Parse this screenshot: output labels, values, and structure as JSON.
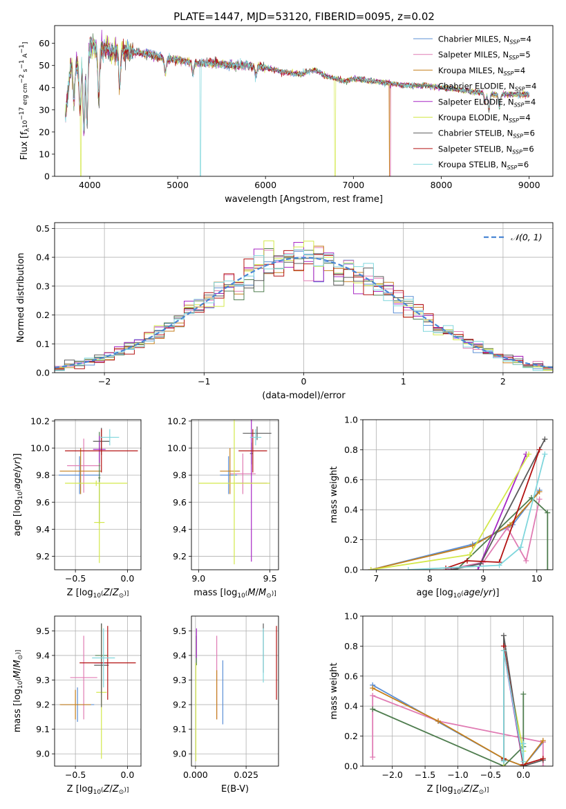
{
  "figure": {
    "title": "PLATE=1447, MJD=53120, FIBERID=0095, z=0.02"
  },
  "colors": {
    "Chabrier MILES": "#5b8fd6",
    "Salpeter MILES": "#e07bb3",
    "Kroupa MILES": "#c57f1c",
    "Chabrier ELODIE": "#4f7d4f",
    "Salpeter ELODIE": "#a626c4",
    "Kroupa ELODIE": "#d3e84a",
    "Chabrier STELIB": "#5a5a5a",
    "Salpeter STELIB": "#b31212",
    "Kroupa STELIB": "#7fd6dc"
  },
  "chart_data": [
    {
      "id": "spectrum",
      "type": "line",
      "xlabel": "wavelength [Angstrom, rest frame]",
      "ylabel": "Flux [f_λ 10^-17 erg cm^-2 s^-1 A^-1]",
      "xlim": [
        3600,
        9270
      ],
      "ylim": [
        0,
        68
      ],
      "xticks": [
        "4000",
        "5000",
        "6000",
        "7000",
        "8000",
        "9000"
      ],
      "yticks": [
        "0",
        "10",
        "20",
        "30",
        "40",
        "50",
        "60"
      ],
      "grid": false,
      "legend_position": "top-right",
      "legend": [
        {
          "model": "Chabrier MILES",
          "n": "4"
        },
        {
          "model": "Salpeter MILES",
          "n": "5"
        },
        {
          "model": "Kroupa MILES",
          "n": "4"
        },
        {
          "model": "Chabrier ELODIE",
          "n": "4"
        },
        {
          "model": "Salpeter ELODIE",
          "n": "4"
        },
        {
          "model": "Kroupa ELODIE",
          "n": "4"
        },
        {
          "model": "Chabrier STELIB",
          "n": "6"
        },
        {
          "model": "Salpeter STELIB",
          "n": "6"
        },
        {
          "model": "Kroupa STELIB",
          "n": "6"
        }
      ],
      "continuum": [
        [
          3720,
          26
        ],
        [
          3780,
          48
        ],
        [
          3850,
          50
        ],
        [
          3900,
          52
        ],
        [
          3960,
          55
        ],
        [
          4000,
          58
        ],
        [
          4100,
          58
        ],
        [
          4200,
          57
        ],
        [
          4300,
          56
        ],
        [
          4400,
          56.5
        ],
        [
          4500,
          56
        ],
        [
          4700,
          55
        ],
        [
          4860,
          53
        ],
        [
          5000,
          52.5
        ],
        [
          5200,
          51
        ],
        [
          5400,
          51
        ],
        [
          5600,
          50
        ],
        [
          5800,
          50
        ],
        [
          6000,
          49
        ],
        [
          6200,
          47
        ],
        [
          6400,
          46
        ],
        [
          6563,
          48
        ],
        [
          6700,
          45
        ],
        [
          6900,
          43
        ],
        [
          7000,
          44
        ],
        [
          7200,
          43
        ],
        [
          7400,
          42
        ],
        [
          7600,
          41
        ],
        [
          7800,
          41
        ],
        [
          8000,
          40
        ],
        [
          8200,
          39
        ],
        [
          8400,
          38
        ],
        [
          8600,
          37
        ],
        [
          8800,
          37
        ],
        [
          9000,
          37
        ]
      ],
      "absorption_lines": [
        [
          3820,
          34
        ],
        [
          3889,
          30
        ],
        [
          3933,
          22
        ],
        [
          3968,
          24
        ],
        [
          4102,
          34
        ],
        [
          4340,
          40
        ],
        [
          4861,
          47
        ],
        [
          5175,
          46
        ],
        [
          5890,
          45
        ],
        [
          8498,
          33
        ],
        [
          8542,
          30
        ],
        [
          8662,
          31
        ]
      ],
      "line_range": [
        3720,
        9000
      ]
    },
    {
      "id": "residuals",
      "type": "histogram",
      "xlabel": "(data-model)/error",
      "ylabel": "Normed distribution",
      "xlim": [
        -2.5,
        2.5
      ],
      "ylim": [
        0,
        0.52
      ],
      "xticks": [
        "−2",
        "−1",
        "0",
        "1",
        "2"
      ],
      "yticks": [
        "0.0",
        "0.1",
        "0.2",
        "0.3",
        "0.4",
        "0.5"
      ],
      "grid": true,
      "bin_width": 0.1,
      "legend_position": "top-right",
      "legend": {
        "label": "N(0,1)"
      },
      "reference_curve": {
        "mean": 0,
        "sigma": 1
      }
    },
    {
      "id": "age-vs-Z",
      "type": "errorbar",
      "xlabel": "Z [log10(Z/Z⊙)]",
      "ylabel": "age [log10(age/yr)]",
      "xlim": [
        -0.7,
        0.13
      ],
      "ylim": [
        9.1,
        10.21
      ],
      "xticks": [
        "−0.5",
        "0.0"
      ],
      "yticks": [
        "9.2",
        "9.4",
        "9.6",
        "9.8",
        "10.0",
        "10.2"
      ],
      "grid": true,
      "points": [
        {
          "model": "Chabrier MILES",
          "x": -0.46,
          "xerr": 0.2,
          "y": 9.8,
          "yerr": 0.14
        },
        {
          "model": "Salpeter MILES",
          "x": -0.42,
          "xerr": 0.16,
          "y": 9.87,
          "yerr": 0.2
        },
        {
          "model": "Kroupa MILES",
          "x": -0.45,
          "xerr": 0.2,
          "y": 9.83,
          "yerr": 0.17
        },
        {
          "model": "Chabrier ELODIE",
          "x": -0.27,
          "xerr": 0.01,
          "y": 9.78,
          "yerr": 0.34
        },
        {
          "model": "Salpeter ELODIE",
          "x": -0.27,
          "xerr": 0.06,
          "y": 9.99,
          "yerr": 0.1
        },
        {
          "model": "Kroupa ELODIE",
          "x": -0.27,
          "xerr": 0.05,
          "y": 9.45,
          "yerr": 0.3
        },
        {
          "model": "Chabrier STELIB",
          "x": -0.25,
          "xerr": 0.08,
          "y": 10.05,
          "yerr": 0.1
        },
        {
          "model": "Salpeter STELIB",
          "x": -0.25,
          "xerr": 0.35,
          "y": 9.98,
          "yerr": 0.16
        },
        {
          "model": "Kroupa STELIB",
          "x": -0.17,
          "xerr": 0.09,
          "y": 10.08,
          "yerr": 0.06
        },
        {
          "model": "Kroupa ELODIE",
          "x": -0.3,
          "xerr": 0.3,
          "y": 9.74,
          "yerr": 0.02
        }
      ]
    },
    {
      "id": "age-vs-mass",
      "type": "errorbar",
      "xlabel": "mass [log10(M/M⊙)]",
      "ylabel": "",
      "xlim": [
        8.95,
        9.56
      ],
      "ylim": [
        9.1,
        10.21
      ],
      "xticks": [
        "9.0",
        "9.5"
      ],
      "yticks": [
        "9.2",
        "9.4",
        "9.6",
        "9.8",
        "10.0",
        "10.2"
      ],
      "grid": true,
      "points": [
        {
          "model": "Chabrier MILES",
          "x": 9.21,
          "xerr": 0.06,
          "y": 9.8,
          "yerr": 0.14
        },
        {
          "model": "Salpeter MILES",
          "x": 9.31,
          "xerr": 0.09,
          "y": 9.81,
          "yerr": 0.15
        },
        {
          "model": "Kroupa MILES",
          "x": 9.22,
          "xerr": 0.07,
          "y": 9.83,
          "yerr": 0.17
        },
        {
          "model": "Chabrier ELODIE",
          "x": 9.37,
          "xerr": 0.01,
          "y": 9.96,
          "yerr": 0.08
        },
        {
          "model": "Salpeter ELODIE",
          "x": 9.37,
          "xerr": 0.11,
          "y": 9.74,
          "yerr": 0.58
        },
        {
          "model": "Kroupa ELODIE",
          "x": 9.25,
          "xerr": 0.25,
          "y": 9.74,
          "yerr": 0.6
        },
        {
          "model": "Chabrier STELIB",
          "x": 9.41,
          "xerr": 0.1,
          "y": 10.11,
          "yerr": 0.05
        },
        {
          "model": "Salpeter STELIB",
          "x": 9.38,
          "xerr": 0.1,
          "y": 9.98,
          "yerr": 0.16
        },
        {
          "model": "Kroupa STELIB",
          "x": 9.4,
          "xerr": 0.04,
          "y": 10.08,
          "yerr": 0.06
        }
      ]
    },
    {
      "id": "weight-vs-age",
      "type": "line",
      "xlabel": "age [log10(age/yr)]",
      "ylabel": "mass weight",
      "xlim": [
        6.75,
        10.3
      ],
      "ylim": [
        0,
        1
      ],
      "xticks": [
        "7",
        "8",
        "9",
        "10"
      ],
      "yticks": [
        "0.0",
        "0.2",
        "0.4",
        "0.6",
        "0.8",
        "1.0"
      ],
      "grid": true,
      "series": [
        {
          "model": "Chabrier MILES",
          "x": [
            6.9,
            8.8,
            9.55,
            10.05
          ],
          "y": [
            0.0,
            0.17,
            0.3,
            0.53
          ]
        },
        {
          "model": "Salpeter MILES",
          "x": [
            8.3,
            9.0,
            9.45,
            9.8,
            10.05
          ],
          "y": [
            0.0,
            0.05,
            0.28,
            0.06,
            0.47
          ]
        },
        {
          "model": "Kroupa MILES",
          "x": [
            6.9,
            8.8,
            9.5,
            10.05
          ],
          "y": [
            0.0,
            0.16,
            0.3,
            0.52
          ]
        },
        {
          "model": "Chabrier ELODIE",
          "x": [
            8.5,
            9.9,
            10.2,
            10.2
          ],
          "y": [
            0.0,
            0.48,
            0.38,
            0.0
          ]
        },
        {
          "model": "Salpeter ELODIE",
          "x": [
            8.9,
            9.8
          ],
          "y": [
            0.0,
            0.77
          ]
        },
        {
          "model": "Kroupa ELODIE",
          "x": [
            6.9,
            8.75,
            9.85
          ],
          "y": [
            0.0,
            0.1,
            0.77
          ]
        },
        {
          "model": "Chabrier STELIB",
          "x": [
            8.4,
            8.95,
            10.15
          ],
          "y": [
            0.0,
            0.04,
            0.87
          ]
        },
        {
          "model": "Salpeter STELIB",
          "x": [
            8.3,
            8.7,
            9.3,
            10.05
          ],
          "y": [
            0.01,
            0.06,
            0.05,
            0.8
          ]
        },
        {
          "model": "Kroupa STELIB",
          "x": [
            7.6,
            9.3,
            9.7,
            10.15
          ],
          "y": [
            0.0,
            0.03,
            0.15,
            0.77
          ]
        }
      ]
    },
    {
      "id": "mass-vs-Z",
      "type": "errorbar",
      "xlabel": "Z [log10(Z/Z⊙)]",
      "ylabel": "mass [log10(M/M⊙)]",
      "xlim": [
        -0.7,
        0.13
      ],
      "ylim": [
        8.95,
        9.56
      ],
      "xticks": [
        "−0.5",
        "0.0"
      ],
      "yticks": [
        "9.0",
        "9.1",
        "9.2",
        "9.3",
        "9.4",
        "9.5"
      ],
      "grid": true,
      "points": [
        {
          "model": "Chabrier MILES",
          "x": -0.48,
          "xerr": 0.16,
          "y": 9.2,
          "yerr": 0.07
        },
        {
          "model": "Salpeter MILES",
          "x": -0.42,
          "xerr": 0.13,
          "y": 9.31,
          "yerr": 0.17
        },
        {
          "model": "Kroupa MILES",
          "x": -0.5,
          "xerr": 0.15,
          "y": 9.2,
          "yerr": 0.06
        },
        {
          "model": "Chabrier ELODIE",
          "x": -0.25,
          "xerr": 0.06,
          "y": 9.4,
          "yerr": 0.13
        },
        {
          "model": "Salpeter ELODIE",
          "x": -0.25,
          "xerr": 0.07,
          "y": 9.37,
          "yerr": 0.13
        },
        {
          "model": "Kroupa ELODIE",
          "x": -0.25,
          "xerr": 0.05,
          "y": 9.25,
          "yerr": 0.27
        },
        {
          "model": "Chabrier STELIB",
          "x": -0.25,
          "xerr": 0.07,
          "y": 9.36,
          "yerr": 0.17
        },
        {
          "model": "Salpeter STELIB",
          "x": -0.19,
          "xerr": 0.27,
          "y": 9.37,
          "yerr": 0.15
        },
        {
          "model": "Kroupa STELIB",
          "x": -0.23,
          "xerr": 0.11,
          "y": 9.39,
          "yerr": 0.12
        }
      ]
    },
    {
      "id": "mass-vs-ebv",
      "type": "errorbar",
      "xlabel": "E(B-V)",
      "ylabel": "",
      "xlim": [
        -0.002,
        0.041
      ],
      "ylim": [
        8.95,
        9.56
      ],
      "xticks": [
        "0.000",
        "0.025"
      ],
      "yticks": [
        "9.0",
        "9.1",
        "9.2",
        "9.3",
        "9.4",
        "9.5"
      ],
      "grid": true,
      "points": [
        {
          "model": "Chabrier MILES",
          "x": 0.0135,
          "xerr": 0,
          "y": 9.25,
          "yerr": 0.13
        },
        {
          "model": "Salpeter MILES",
          "x": 0.0105,
          "xerr": 0,
          "y": 9.31,
          "yerr": 0.17
        },
        {
          "model": "Kroupa MILES",
          "x": 0.0105,
          "xerr": 0,
          "y": 9.24,
          "yerr": 0.1
        },
        {
          "model": "Chabrier ELODIE",
          "x": 0.0005,
          "xerr": 0,
          "y": 9.42,
          "yerr": 0.06
        },
        {
          "model": "Salpeter ELODIE",
          "x": 0.0005,
          "xerr": 0,
          "y": 9.45,
          "yerr": 0.06
        },
        {
          "model": "Kroupa ELODIE",
          "x": 0.0002,
          "xerr": 0,
          "y": 9.17,
          "yerr": 0.2
        },
        {
          "model": "Chabrier STELIB",
          "x": 0.0335,
          "xerr": 0,
          "y": 9.43,
          "yerr": 0.1
        },
        {
          "model": "Salpeter STELIB",
          "x": 0.04,
          "xerr": 0,
          "y": 9.37,
          "yerr": 0.15
        },
        {
          "model": "Kroupa STELIB",
          "x": 0.0335,
          "xerr": 0,
          "y": 9.4,
          "yerr": 0.11
        }
      ]
    },
    {
      "id": "weight-vs-Z",
      "type": "line",
      "xlabel": "Z [log10(Z/Z⊙)]",
      "ylabel": "mass weight",
      "xlim": [
        -2.45,
        0.45
      ],
      "ylim": [
        0,
        1
      ],
      "xticks": [
        "−2.0",
        "−1.5",
        "−1.0",
        "−0.5",
        "0.0"
      ],
      "yticks": [
        "0.0",
        "0.2",
        "0.4",
        "0.6",
        "0.8",
        "1.0"
      ],
      "grid": true,
      "series": [
        {
          "model": "Chabrier MILES",
          "x": [
            -2.3,
            -0.3,
            0.0,
            0.3
          ],
          "y": [
            0.54,
            0.05,
            0.0,
            0.16
          ]
        },
        {
          "model": "Salpeter MILES",
          "x": [
            -2.3,
            -2.3,
            -1.3,
            0.3,
            0.3
          ],
          "y": [
            0.06,
            0.47,
            0.3,
            0.16,
            0.0
          ]
        },
        {
          "model": "Kroupa MILES",
          "x": [
            -2.3,
            -1.3,
            -0.3,
            0.0,
            0.3
          ],
          "y": [
            0.52,
            0.3,
            0.05,
            0.0,
            0.17
          ]
        },
        {
          "model": "Chabrier ELODIE",
          "x": [
            -2.3,
            -0.3,
            0.0,
            0.0
          ],
          "y": [
            0.38,
            0.0,
            0.13,
            0.48
          ]
        },
        {
          "model": "Salpeter ELODIE",
          "x": [
            -0.3,
            -0.3,
            0.0
          ],
          "y": [
            0.0,
            0.77,
            0.0
          ]
        },
        {
          "model": "Kroupa ELODIE",
          "x": [
            -0.3,
            -0.3,
            0.0,
            0.0
          ],
          "y": [
            0.0,
            0.77,
            0.1,
            0.0
          ]
        },
        {
          "model": "Chabrier STELIB",
          "x": [
            -0.3,
            -0.3,
            0.0,
            0.3
          ],
          "y": [
            0.04,
            0.87,
            0.0,
            0.04
          ]
        },
        {
          "model": "Salpeter STELIB",
          "x": [
            -0.3,
            -0.3,
            0.0,
            0.3
          ],
          "y": [
            0.05,
            0.8,
            0.01,
            0.05
          ]
        },
        {
          "model": "Kroupa STELIB",
          "x": [
            -0.3,
            -0.3,
            0.0,
            0.0
          ],
          "y": [
            0.03,
            0.77,
            0.03,
            0.15
          ]
        }
      ]
    }
  ]
}
